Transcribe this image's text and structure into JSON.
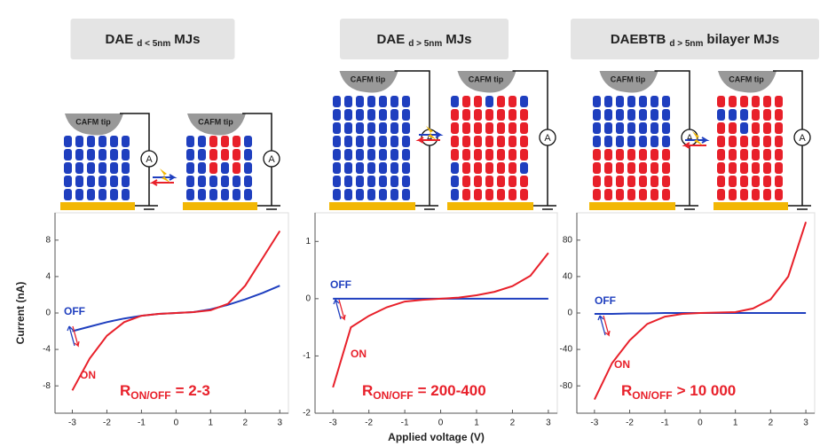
{
  "chart_data": [
    {
      "type": "line",
      "title": "DAE",
      "title_sub": "d < 5nm",
      "title_suffix": "MJs",
      "ylabel": "Current (nA)",
      "x": [
        -3,
        -2.5,
        -2,
        -1.5,
        -1,
        -0.5,
        0,
        0.5,
        1,
        1.5,
        2,
        2.5,
        3
      ],
      "series": [
        {
          "name": "OFF",
          "color": "#1f3fbf",
          "values": [
            -2,
            -1.5,
            -1,
            -0.6,
            -0.3,
            -0.1,
            0,
            0.1,
            0.4,
            0.9,
            1.5,
            2.2,
            3
          ]
        },
        {
          "name": "ON",
          "color": "#e8202a",
          "values": [
            -8.5,
            -5,
            -2.5,
            -1,
            -0.3,
            -0.1,
            0,
            0.1,
            0.3,
            1,
            3,
            6,
            9
          ]
        }
      ],
      "xlim": [
        -3.5,
        3.25
      ],
      "ylim": [
        -11,
        11
      ],
      "xticks": [
        -3,
        -2,
        -1,
        0,
        1,
        2,
        3
      ],
      "yticks": [
        -8,
        -4,
        0,
        4,
        8
      ],
      "ratio_label": "R",
      "ratio_sub": "ON/OFF",
      "ratio_value": "= 2-3"
    },
    {
      "type": "line",
      "title": "DAE",
      "title_sub": "d > 5nm",
      "title_suffix": "MJs",
      "xlabel": "Applied voltage (V)",
      "x": [
        -3,
        -2.5,
        -2,
        -1.5,
        -1,
        -0.5,
        0,
        0.5,
        1,
        1.5,
        2,
        2.5,
        3
      ],
      "series": [
        {
          "name": "OFF",
          "color": "#1f3fbf",
          "values": [
            0,
            0,
            0,
            0,
            0,
            0,
            0,
            0,
            0,
            0,
            0,
            0,
            0
          ]
        },
        {
          "name": "ON",
          "color": "#e8202a",
          "values": [
            -1.55,
            -0.5,
            -0.3,
            -0.15,
            -0.05,
            -0.02,
            0,
            0.02,
            0.06,
            0.12,
            0.22,
            0.4,
            0.8
          ]
        }
      ],
      "xlim": [
        -3.5,
        3.25
      ],
      "ylim": [
        -2,
        1.5
      ],
      "xticks": [
        -3,
        -2,
        -1,
        0,
        1,
        2,
        3
      ],
      "yticks": [
        -2,
        -1,
        0,
        1
      ],
      "ratio_label": "R",
      "ratio_sub": "ON/OFF",
      "ratio_value": "= 200-400"
    },
    {
      "type": "line",
      "title": "DAEBTB",
      "title_sub": "d > 5nm",
      "title_suffix": "bilayer MJs",
      "x": [
        -3,
        -2.5,
        -2,
        -1.5,
        -1,
        -0.5,
        0,
        0.5,
        1,
        1.5,
        2,
        2.5,
        3
      ],
      "series": [
        {
          "name": "OFF",
          "color": "#1f3fbf",
          "values": [
            -1,
            -1,
            -0.5,
            -0.5,
            0,
            0,
            0,
            0,
            0,
            0,
            0,
            0,
            0
          ]
        },
        {
          "name": "ON",
          "color": "#e8202a",
          "values": [
            -95,
            -55,
            -30,
            -12,
            -4,
            -1,
            0,
            0.5,
            1,
            5,
            15,
            40,
            100
          ]
        }
      ],
      "xlim": [
        -3.5,
        3.25
      ],
      "ylim": [
        -110,
        110
      ],
      "xticks": [
        -3,
        -2,
        -1,
        0,
        1,
        2,
        3
      ],
      "yticks": [
        -80,
        -40,
        0,
        40,
        80
      ],
      "ratio_label": "R",
      "ratio_sub": "ON/OFF",
      "ratio_value": "> 10 000"
    }
  ],
  "schematic": {
    "tip_label": "CAFM tip",
    "meter_label": "A"
  }
}
